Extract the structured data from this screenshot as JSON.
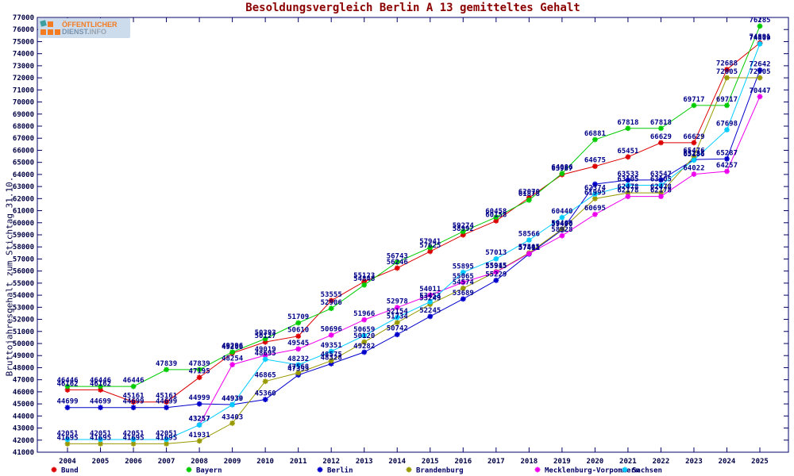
{
  "title": "Besoldungsvergleich Berlin A 13 gemitteltes Gehalt",
  "logo": {
    "line1": "ÖFFENTLICHER",
    "line2a": "DIENST.",
    "line2b": "INFO"
  },
  "y_axis": {
    "label": "Bruttojahresgehalt zum Stichtag 31.10.",
    "min": 41000,
    "max": 77000,
    "step": 1000
  },
  "colors": {
    "frame": "#000066",
    "tick_text": "#000044",
    "point_label": "#000088",
    "title": "#8b0000",
    "legend_text": "#000066"
  },
  "chart_data": {
    "type": "line",
    "x": [
      2004,
      2005,
      2006,
      2007,
      2008,
      2009,
      2010,
      2011,
      2012,
      2013,
      2014,
      2015,
      2016,
      2017,
      2018,
      2019,
      2020,
      2021,
      2022,
      2023,
      2024,
      2025
    ],
    "xlabel": "",
    "ylabel": "Bruttojahresgehalt zum Stichtag 31.10.",
    "title": "Besoldungsvergleich Berlin A 13 gemitteltes Gehalt",
    "ylim": [
      41000,
      77000
    ],
    "grid": false,
    "legend_position": "bottom",
    "marker": "star",
    "series": [
      {
        "name": "Bund",
        "color": "#dd0000",
        "values": [
          46162,
          46162,
          45161,
          45161,
          47195,
          49206,
          50127,
          50610,
          53555,
          55123,
          56246,
          57625,
          58992,
          60158,
          62070,
          63987,
          64675,
          65451,
          66629,
          66629,
          72688,
          74891
        ],
        "no_label_years": []
      },
      {
        "name": "Bayern",
        "color": "#00cc00",
        "values": [
          46446,
          46446,
          46446,
          47839,
          47839,
          49296,
          50393,
          51709,
          52906,
          54848,
          56743,
          57941,
          59274,
          60458,
          61878,
          64086,
          66881,
          67818,
          67818,
          69717,
          69717,
          76285
        ],
        "no_label_years": []
      },
      {
        "name": "Berlin",
        "color": "#0000cc",
        "values": [
          44699,
          44699,
          44699,
          44699,
          44999,
          44939,
          45360,
          47393,
          48328,
          49282,
          50742,
          52245,
          53689,
          55229,
          57411,
          59400,
          63200,
          63533,
          63547,
          65233,
          65287,
          72642
        ],
        "no_label_years": [
          2020
        ]
      },
      {
        "name": "Brandenburg",
        "color": "#999900",
        "values": [
          41695,
          41695,
          41695,
          41695,
          41931,
          43403,
          46865,
          47568,
          48575,
          50120,
          51734,
          53249,
          54574,
          55945,
          57505,
          59468,
          61995,
          62478,
          62478,
          65476,
          72005,
          72005
        ],
        "no_label_years": []
      },
      {
        "name": "Mecklenburg-Vorpommern",
        "color": "#ee00ee",
        "values": [
          null,
          null,
          null,
          null,
          43257,
          48254,
          49019,
          49545,
          50696,
          51966,
          52978,
          54011,
          55065,
          55915,
          57441,
          58928,
          60695,
          62178,
          62178,
          64022,
          64257,
          70447
        ],
        "no_label_years": []
      },
      {
        "name": "Sachsen",
        "color": "#00ccff",
        "values": [
          42051,
          42051,
          42051,
          42051,
          43257,
          44930,
          48695,
          48232,
          49351,
          50659,
          52154,
          53453,
          55895,
          57013,
          58566,
          60440,
          62374,
          63105,
          63105,
          65186,
          67698,
          74809
        ],
        "no_label_years": []
      }
    ]
  }
}
